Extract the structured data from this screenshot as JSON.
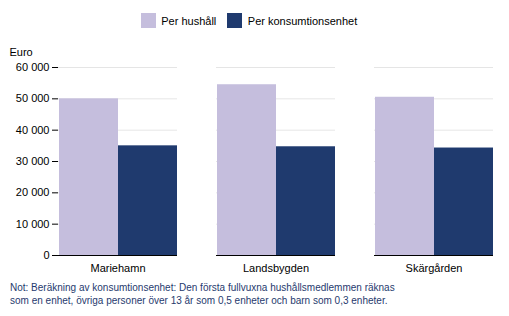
{
  "chart_data": {
    "type": "bar",
    "categories": [
      "Mariehamn",
      "Landsbygden",
      "Skärgården"
    ],
    "series": [
      {
        "name": "Per hushåll",
        "color": "#c5bedd",
        "values": [
          50000,
          54500,
          50500
        ]
      },
      {
        "name": "Per konsumtionsenhet",
        "color": "#1f3a6e",
        "values": [
          35000,
          34700,
          34300
        ]
      }
    ],
    "y_label": "Euro",
    "ylim": [
      0,
      60000
    ],
    "yticks": [
      0,
      {
        "value": 10000,
        "label": "10 000"
      },
      {
        "value": 20000,
        "label": "20 000"
      },
      {
        "value": 30000,
        "label": "30 000"
      },
      {
        "value": 40000,
        "label": "40 000"
      },
      {
        "value": 50000,
        "label": "50 000"
      },
      {
        "value": 60000,
        "label": "60 000"
      }
    ],
    "grid": true,
    "legend": "top",
    "annotations": [
      {
        "text": "Not: Beräkning av konsumtionsenhet: Den första fullvuxna hushållsmedlemmen räknas",
        "color": "#1f3a6e"
      },
      {
        "text": "som en enhet, övriga personer över 13 år som 0,5 enheter och barn som 0,3 enheter.",
        "color": "#1f3a6e"
      }
    ]
  }
}
